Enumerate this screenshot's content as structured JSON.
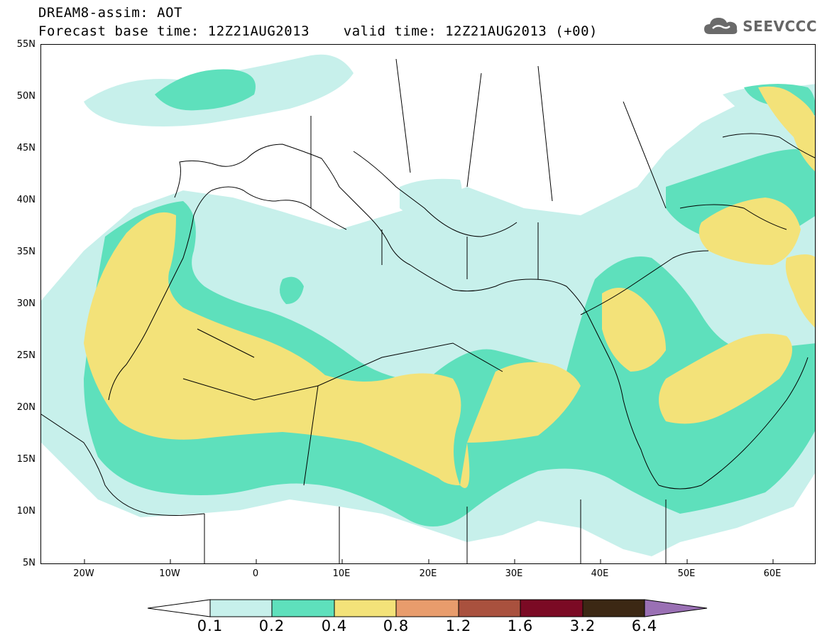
{
  "header": {
    "title": "DREAM8-assim: AOT",
    "base_time_line": "Forecast base time: 12Z21AUG2013    valid time: 12Z21AUG2013 (+00)"
  },
  "logo": {
    "text": "SEEVCCC",
    "icon": "cloud-icon"
  },
  "map": {
    "projection": "lat-lon",
    "lon_range": [
      -25,
      65
    ],
    "lat_range": [
      5,
      55
    ],
    "lat_labels": [
      "55N",
      "50N",
      "45N",
      "40N",
      "35N",
      "30N",
      "25N",
      "20N",
      "15N",
      "10N",
      "5N"
    ],
    "lon_labels": [
      "20W",
      "10W",
      "0",
      "10E",
      "20E",
      "30E",
      "40E",
      "50E",
      "60E"
    ],
    "field": "Aerosol optical thickness (AOT)",
    "colors": {
      "0.1-0.2": "#c7f0eb",
      "0.2-0.4": "#5ee0bc",
      "0.4-0.8": "#f3e279",
      "0.8-1.2": "#e89c6c",
      "1.2-1.6": "#a9513e",
      "1.6-3.2": "#7b0a24",
      "3.2-6.4": "#3c2814",
      ">6.4": "#9a70b4"
    }
  },
  "colorbar": {
    "labels": [
      "0.1",
      "0.2",
      "0.4",
      "0.8",
      "1.2",
      "1.6",
      "3.2",
      "6.4"
    ],
    "colors": [
      "#c7f0eb",
      "#5ee0bc",
      "#f3e279",
      "#e89c6c",
      "#a9513e",
      "#7b0a24",
      "#3c2814",
      "#9a70b4"
    ]
  }
}
